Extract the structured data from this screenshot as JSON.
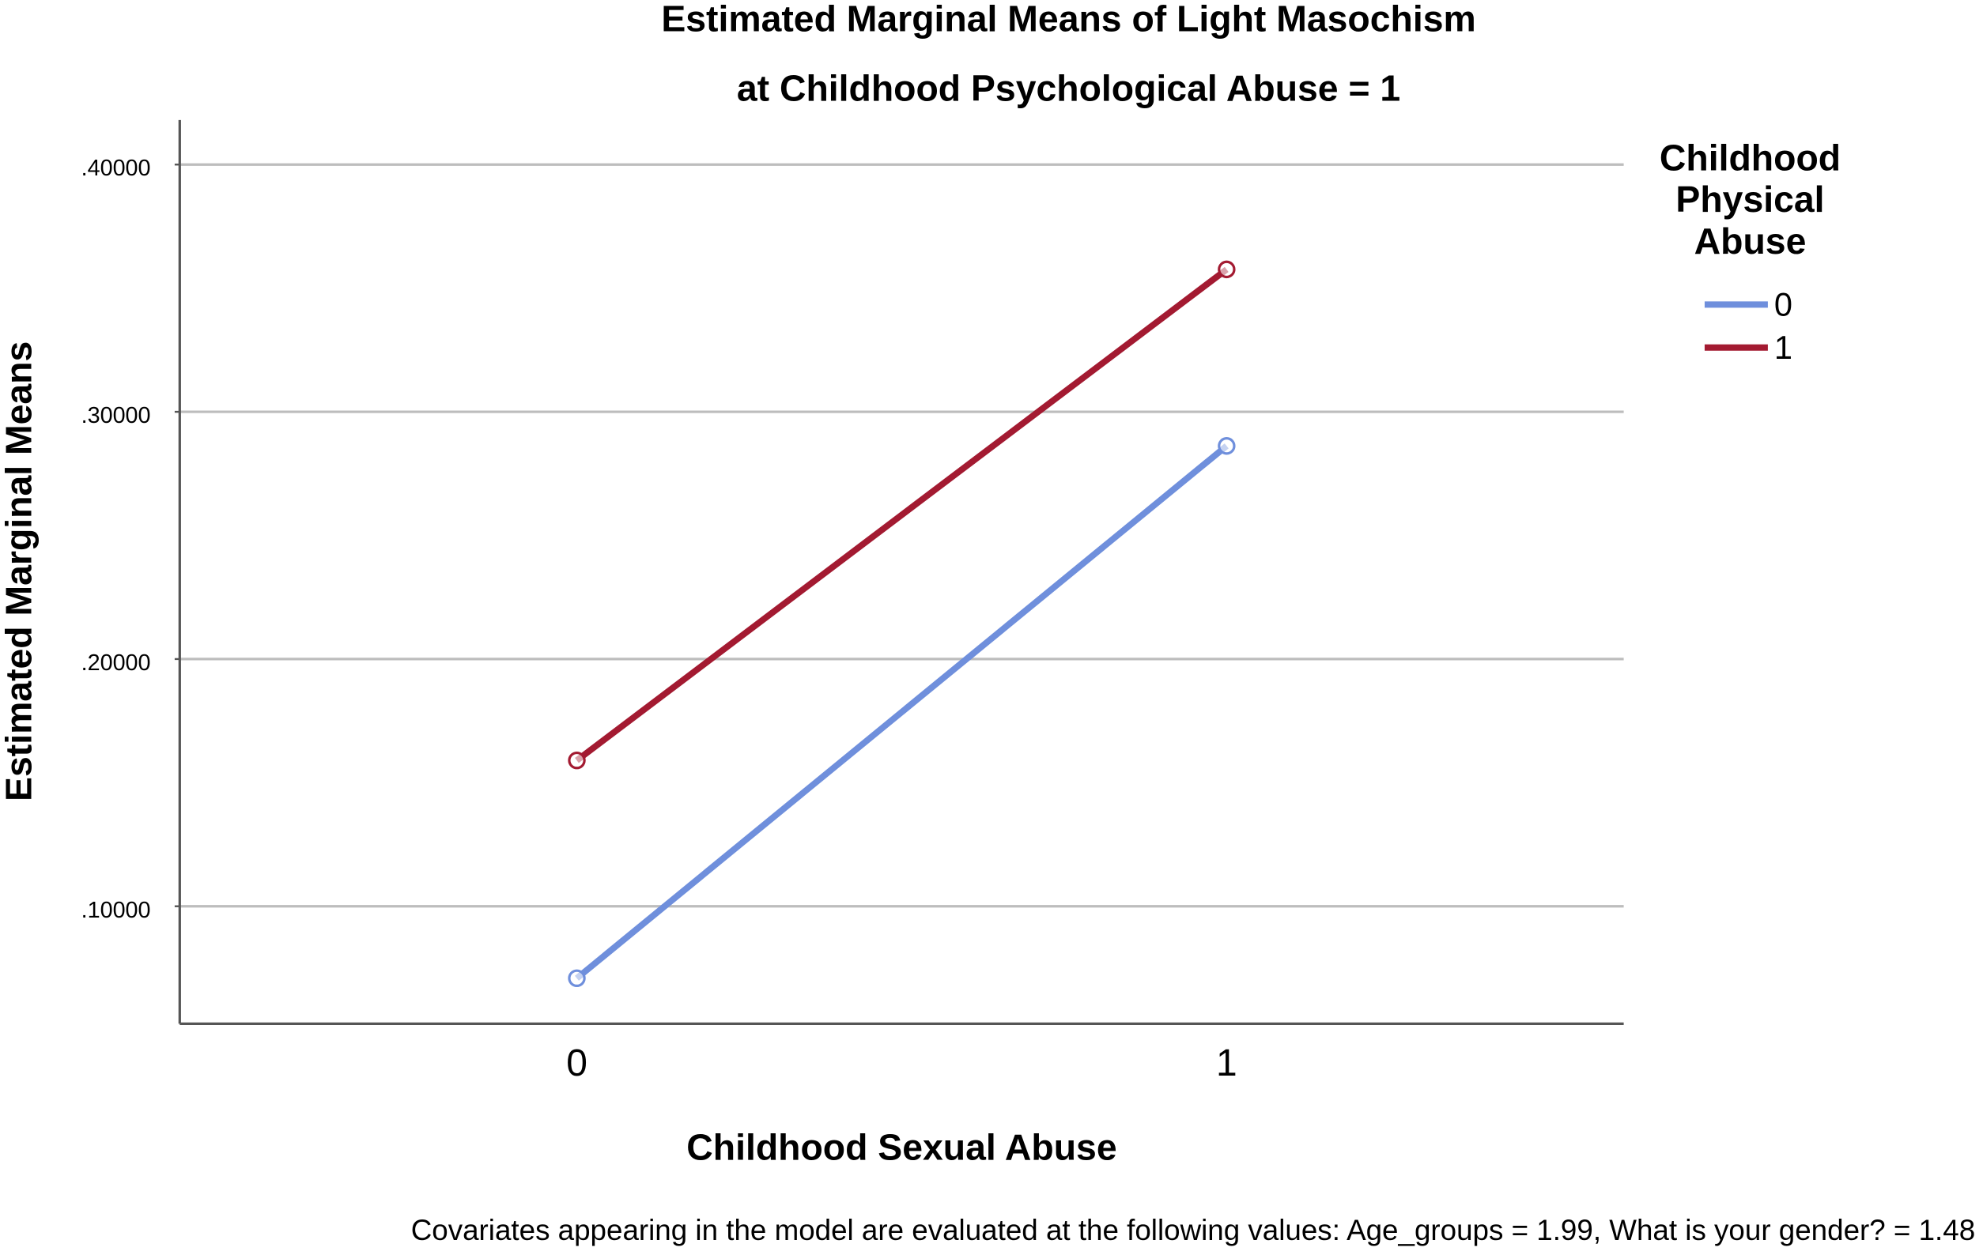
{
  "chart_data": {
    "type": "line",
    "title": "Estimated Marginal Means of Light Masochism",
    "subtitle": "at Childhood Psychological Abuse = 1",
    "x_label": "Childhood Sexual Abuse",
    "y_label": "Estimated Marginal Means",
    "legend_title": [
      "Childhood",
      "Physical",
      "Abuse"
    ],
    "legend_position": "right",
    "note": "Covariates appearing in the model are evaluated at the following values: Age_groups = 1.99, What is your gender? = 1.48",
    "categories": [
      "0",
      "1"
    ],
    "series": [
      {
        "name": "0",
        "color": "#6f8fdc",
        "values": [
          0.0709,
          0.2862
        ]
      },
      {
        "name": "1",
        "color": "#a31a31",
        "values": [
          0.159,
          0.3576
        ]
      }
    ],
    "ylim": [
      0.0525,
      0.418
    ],
    "yticks": [
      {
        "value": 0.1,
        "label": ".10000"
      },
      {
        "value": 0.2,
        "label": ".20000"
      },
      {
        "value": 0.3,
        "label": ".30000"
      },
      {
        "value": 0.4,
        "label": ".40000"
      }
    ],
    "grid": true
  }
}
